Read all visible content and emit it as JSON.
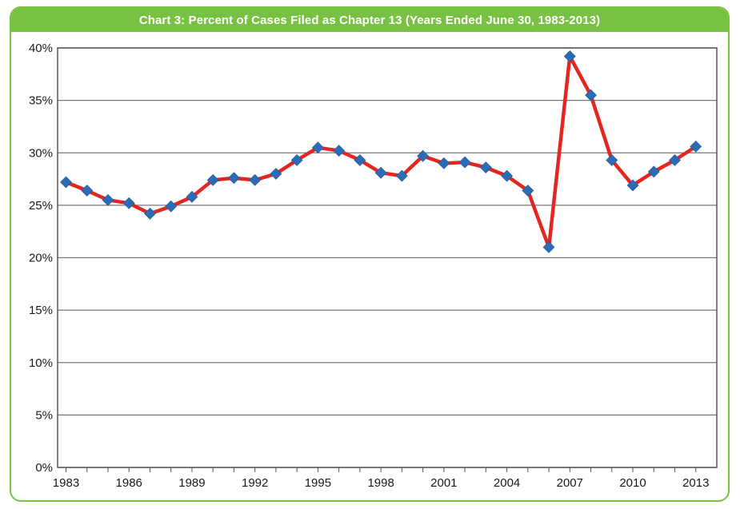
{
  "chart_data": {
    "type": "line",
    "title": "Chart 3: Percent of Cases Filed as Chapter 13 (Years Ended June 30, 1983-2013)",
    "xlabel": "",
    "ylabel": "",
    "ylim": [
      0,
      40
    ],
    "yticks": [
      0,
      5,
      10,
      15,
      20,
      25,
      30,
      35,
      40
    ],
    "ytick_labels": [
      "0%",
      "5%",
      "10%",
      "15%",
      "20%",
      "25%",
      "30%",
      "35%",
      "40%"
    ],
    "xticks": [
      1983,
      1986,
      1989,
      1992,
      1995,
      1998,
      2001,
      2004,
      2007,
      2010,
      2013
    ],
    "xtick_labels": [
      "1983",
      "1986",
      "1989",
      "1992",
      "1995",
      "1998",
      "2001",
      "2004",
      "2007",
      "2010",
      "2013"
    ],
    "grid": "horizontal",
    "colors": {
      "line": "#e32621",
      "marker": "#2b6cb5",
      "accent": "#79c142",
      "grid": "#777777"
    },
    "series": [
      {
        "x": [
          1983,
          1984,
          1985,
          1986,
          1987,
          1988,
          1989,
          1990,
          1991,
          1992,
          1993,
          1994,
          1995,
          1996,
          1997,
          1998,
          1999,
          2000,
          2001,
          2002,
          2003,
          2004,
          2005,
          2006,
          2007,
          2008,
          2009,
          2010,
          2011,
          2012,
          2013
        ],
        "values": [
          27.2,
          26.4,
          25.5,
          25.2,
          24.2,
          24.9,
          25.8,
          27.4,
          27.6,
          27.4,
          28.0,
          29.3,
          30.5,
          30.2,
          29.3,
          28.1,
          27.8,
          29.7,
          29.0,
          29.1,
          28.6,
          27.8,
          26.4,
          21.0,
          39.2,
          35.5,
          29.3,
          26.9,
          28.2,
          29.3,
          30.6
        ]
      }
    ]
  }
}
